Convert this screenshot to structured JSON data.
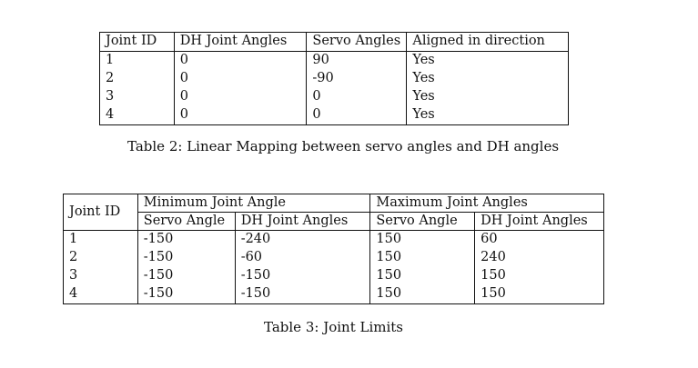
{
  "table2": {
    "headers": [
      "Joint ID",
      "DH Joint Angles",
      "Servo Angles",
      "Aligned in direction"
    ],
    "rows": [
      [
        "1",
        "0",
        "90",
        "Yes"
      ],
      [
        "2",
        "0",
        "-90",
        "Yes"
      ],
      [
        "3",
        "0",
        "0",
        "Yes"
      ],
      [
        "4",
        "0",
        "0",
        "Yes"
      ]
    ],
    "caption": "Table 2: Linear Mapping between servo angles and DH angles"
  },
  "table3": {
    "joint_id_header": "Joint ID",
    "group_min": "Minimum Joint Angle",
    "group_max": "Maximum Joint Angles",
    "sub_headers": [
      "Servo Angle",
      "DH Joint Angles",
      "Servo Angle",
      "DH Joint Angles"
    ],
    "rows": [
      [
        "1",
        "-150",
        "-240",
        "150",
        "60"
      ],
      [
        "2",
        "-150",
        "-60",
        "150",
        "240"
      ],
      [
        "3",
        "-150",
        "-150",
        "150",
        "150"
      ],
      [
        "4",
        "-150",
        "-150",
        "150",
        "150"
      ]
    ],
    "caption": "Table 3: Joint Limits"
  }
}
